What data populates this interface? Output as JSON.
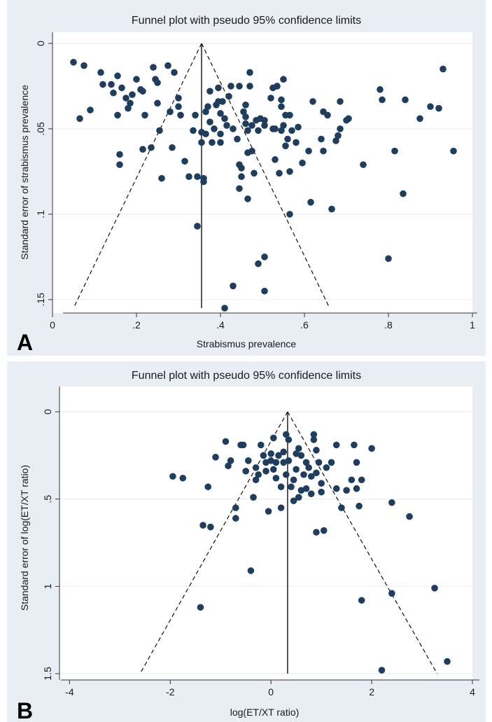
{
  "chart_data": [
    {
      "type": "scatter",
      "panel_letter": "A",
      "title": "Funnel plot with pseudo 95% confidence limits",
      "xlabel": "Strabismus prevalence",
      "ylabel": "Standard error of strabismus prevalence",
      "xlim": [
        0,
        1
      ],
      "ylim": [
        0,
        0.155
      ],
      "y_inverted": true,
      "xticks": [
        {
          "v": 0,
          "label": "0"
        },
        {
          "v": 0.2,
          "label": ".2"
        },
        {
          "v": 0.4,
          "label": ".4"
        },
        {
          "v": 0.6,
          "label": ".6"
        },
        {
          "v": 0.8,
          "label": ".8"
        },
        {
          "v": 1,
          "label": "1"
        }
      ],
      "yticks": [
        {
          "v": 0,
          "label": "0"
        },
        {
          "v": 0.05,
          "label": ".05"
        },
        {
          "v": 0.1,
          "label": ".1"
        },
        {
          "v": 0.15,
          "label": ".15"
        }
      ],
      "grid": "horizontal",
      "pooled_estimate": 0.355,
      "funnel": {
        "apex": [
          0.355,
          0
        ],
        "left_end": [
          0.05,
          0.155
        ],
        "right_end": [
          0.66,
          0.155
        ]
      },
      "marker_color": "#1f3d5c",
      "points": [
        [
          0.05,
          0.011
        ],
        [
          0.075,
          0.013
        ],
        [
          0.065,
          0.044
        ],
        [
          0.09,
          0.039
        ],
        [
          0.115,
          0.017
        ],
        [
          0.12,
          0.024
        ],
        [
          0.14,
          0.024
        ],
        [
          0.145,
          0.029
        ],
        [
          0.155,
          0.019
        ],
        [
          0.155,
          0.042
        ],
        [
          0.16,
          0.065
        ],
        [
          0.16,
          0.071
        ],
        [
          0.165,
          0.026
        ],
        [
          0.175,
          0.032
        ],
        [
          0.18,
          0.038
        ],
        [
          0.185,
          0.035
        ],
        [
          0.19,
          0.03
        ],
        [
          0.2,
          0.021
        ],
        [
          0.21,
          0.027
        ],
        [
          0.215,
          0.028
        ],
        [
          0.215,
          0.062
        ],
        [
          0.22,
          0.042
        ],
        [
          0.235,
          0.061
        ],
        [
          0.24,
          0.014
        ],
        [
          0.245,
          0.021
        ],
        [
          0.25,
          0.023
        ],
        [
          0.25,
          0.035
        ],
        [
          0.255,
          0.051
        ],
        [
          0.26,
          0.079
        ],
        [
          0.275,
          0.013
        ],
        [
          0.28,
          0.04
        ],
        [
          0.285,
          0.061
        ],
        [
          0.29,
          0.017
        ],
        [
          0.3,
          0.032
        ],
        [
          0.3,
          0.037
        ],
        [
          0.305,
          0.042
        ],
        [
          0.315,
          0.069
        ],
        [
          0.325,
          0.078
        ],
        [
          0.335,
          0.051
        ],
        [
          0.34,
          0.042
        ],
        [
          0.345,
          0.107
        ],
        [
          0.345,
          0.078
        ],
        [
          0.355,
          0.052
        ],
        [
          0.355,
          0.058
        ],
        [
          0.36,
          0.079
        ],
        [
          0.36,
          0.081
        ],
        [
          0.365,
          0.04
        ],
        [
          0.365,
          0.053
        ],
        [
          0.37,
          0.037
        ],
        [
          0.375,
          0.028
        ],
        [
          0.375,
          0.046
        ],
        [
          0.38,
          0.058
        ],
        [
          0.385,
          0.05
        ],
        [
          0.39,
          0.036
        ],
        [
          0.395,
          0.026
        ],
        [
          0.395,
          0.034
        ],
        [
          0.4,
          0.041
        ],
        [
          0.4,
          0.053
        ],
        [
          0.4,
          0.058
        ],
        [
          0.405,
          0.034
        ],
        [
          0.41,
          0.044
        ],
        [
          0.41,
          0.155
        ],
        [
          0.415,
          0.048
        ],
        [
          0.42,
          0.031
        ],
        [
          0.425,
          0.025
        ],
        [
          0.43,
          0.05
        ],
        [
          0.43,
          0.142
        ],
        [
          0.44,
          0.056
        ],
        [
          0.445,
          0.025
        ],
        [
          0.445,
          0.085
        ],
        [
          0.445,
          0.071
        ],
        [
          0.45,
          0.073
        ],
        [
          0.45,
          0.078
        ],
        [
          0.455,
          0.04
        ],
        [
          0.46,
          0.036
        ],
        [
          0.46,
          0.043
        ],
        [
          0.46,
          0.047
        ],
        [
          0.465,
          0.051
        ],
        [
          0.465,
          0.064
        ],
        [
          0.465,
          0.091
        ],
        [
          0.47,
          0.017
        ],
        [
          0.47,
          0.025
        ],
        [
          0.475,
          0.063
        ],
        [
          0.475,
          0.048
        ],
        [
          0.48,
          0.076
        ],
        [
          0.485,
          0.045
        ],
        [
          0.49,
          0.129
        ],
        [
          0.49,
          0.051
        ],
        [
          0.495,
          0.044
        ],
        [
          0.505,
          0.125
        ],
        [
          0.505,
          0.045
        ],
        [
          0.505,
          0.048
        ],
        [
          0.505,
          0.145
        ],
        [
          0.52,
          0.032
        ],
        [
          0.525,
          0.026
        ],
        [
          0.525,
          0.05
        ],
        [
          0.53,
          0.05
        ],
        [
          0.53,
          0.068
        ],
        [
          0.535,
          0.025
        ],
        [
          0.54,
          0.076
        ],
        [
          0.545,
          0.033
        ],
        [
          0.545,
          0.037
        ],
        [
          0.545,
          0.051
        ],
        [
          0.55,
          0.021
        ],
        [
          0.55,
          0.048
        ],
        [
          0.555,
          0.042
        ],
        [
          0.555,
          0.06
        ],
        [
          0.56,
          0.056
        ],
        [
          0.565,
          0.042
        ],
        [
          0.565,
          0.075
        ],
        [
          0.565,
          0.1
        ],
        [
          0.57,
          0.051
        ],
        [
          0.58,
          0.058
        ],
        [
          0.585,
          0.049
        ],
        [
          0.595,
          0.07
        ],
        [
          0.61,
          0.063
        ],
        [
          0.615,
          0.093
        ],
        [
          0.62,
          0.034
        ],
        [
          0.64,
          0.056
        ],
        [
          0.645,
          0.063
        ],
        [
          0.645,
          0.04
        ],
        [
          0.655,
          0.042
        ],
        [
          0.665,
          0.097
        ],
        [
          0.675,
          0.057
        ],
        [
          0.68,
          0.054
        ],
        [
          0.685,
          0.05
        ],
        [
          0.685,
          0.034
        ],
        [
          0.7,
          0.045
        ],
        [
          0.705,
          0.044
        ],
        [
          0.74,
          0.071
        ],
        [
          0.78,
          0.027
        ],
        [
          0.785,
          0.033
        ],
        [
          0.8,
          0.126
        ],
        [
          0.815,
          0.063
        ],
        [
          0.835,
          0.088
        ],
        [
          0.84,
          0.033
        ],
        [
          0.875,
          0.044
        ],
        [
          0.9,
          0.037
        ],
        [
          0.92,
          0.038
        ],
        [
          0.93,
          0.015
        ],
        [
          0.955,
          0.063
        ]
      ]
    },
    {
      "type": "scatter",
      "panel_letter": "B",
      "title": "Funnel plot with pseudo 95% confidence limits",
      "xlabel": "log(ET/XT ratio)",
      "ylabel": "Standard error of log(ET/XT ratio)",
      "xlim": [
        -4.2,
        4
      ],
      "ylim": [
        0,
        1.5
      ],
      "y_inverted": true,
      "xticks": [
        {
          "v": -4,
          "label": "-4"
        },
        {
          "v": -2,
          "label": "-2"
        },
        {
          "v": 0,
          "label": "0"
        },
        {
          "v": 2,
          "label": "2"
        },
        {
          "v": 4,
          "label": "4"
        }
      ],
      "yticks": [
        {
          "v": 0,
          "label": "0"
        },
        {
          "v": 0.5,
          "label": ".5"
        },
        {
          "v": 1,
          "label": "1"
        },
        {
          "v": 1.5,
          "label": "1.5"
        }
      ],
      "grid": "horizontal",
      "pooled_estimate": 0.33,
      "funnel": {
        "apex": [
          0.33,
          0
        ],
        "left_end": [
          -2.6,
          1.5
        ],
        "right_end": [
          3.3,
          1.5
        ]
      },
      "marker_color": "#1f3d5c",
      "points": [
        [
          -1.95,
          0.37
        ],
        [
          -1.75,
          0.38
        ],
        [
          -1.25,
          0.43
        ],
        [
          -1.2,
          0.66
        ],
        [
          -1.35,
          0.65
        ],
        [
          -1.4,
          1.12
        ],
        [
          -1.1,
          0.26
        ],
        [
          -0.9,
          0.17
        ],
        [
          -0.85,
          0.31
        ],
        [
          -0.8,
          0.28
        ],
        [
          -0.7,
          0.55
        ],
        [
          -0.7,
          0.61
        ],
        [
          -0.6,
          0.19
        ],
        [
          -0.55,
          0.19
        ],
        [
          -0.5,
          0.34
        ],
        [
          -0.45,
          0.28
        ],
        [
          -0.4,
          0.91
        ],
        [
          -0.35,
          0.49
        ],
        [
          -0.3,
          0.32
        ],
        [
          -0.3,
          0.39
        ],
        [
          -0.25,
          0.36
        ],
        [
          -0.2,
          0.19
        ],
        [
          -0.15,
          0.25
        ],
        [
          -0.1,
          0.29
        ],
        [
          -0.1,
          0.34
        ],
        [
          -0.05,
          0.57
        ],
        [
          0.0,
          0.24
        ],
        [
          0.0,
          0.28
        ],
        [
          0.05,
          0.15
        ],
        [
          0.05,
          0.33
        ],
        [
          0.1,
          0.29
        ],
        [
          0.1,
          0.38
        ],
        [
          0.15,
          0.25
        ],
        [
          0.2,
          0.43
        ],
        [
          0.2,
          0.55
        ],
        [
          0.25,
          0.23
        ],
        [
          0.25,
          0.29
        ],
        [
          0.3,
          0.13
        ],
        [
          0.3,
          0.36
        ],
        [
          0.35,
          0.16
        ],
        [
          0.35,
          0.28
        ],
        [
          0.4,
          0.43
        ],
        [
          0.45,
          0.39
        ],
        [
          0.45,
          0.51
        ],
        [
          0.5,
          0.24
        ],
        [
          0.5,
          0.33
        ],
        [
          0.55,
          0.49
        ],
        [
          0.55,
          0.21
        ],
        [
          0.6,
          0.45
        ],
        [
          0.6,
          0.25
        ],
        [
          0.65,
          0.36
        ],
        [
          0.7,
          0.29
        ],
        [
          0.7,
          0.44
        ],
        [
          0.75,
          0.32
        ],
        [
          0.8,
          0.47
        ],
        [
          0.8,
          0.37
        ],
        [
          0.85,
          0.13
        ],
        [
          0.85,
          0.16
        ],
        [
          0.9,
          0.22
        ],
        [
          0.9,
          0.35
        ],
        [
          0.9,
          0.69
        ],
        [
          0.95,
          0.29
        ],
        [
          1.0,
          0.41
        ],
        [
          1.0,
          0.46
        ],
        [
          1.05,
          0.68
        ],
        [
          1.1,
          0.32
        ],
        [
          1.2,
          0.29
        ],
        [
          1.3,
          0.19
        ],
        [
          1.3,
          0.44
        ],
        [
          1.4,
          0.55
        ],
        [
          1.5,
          0.45
        ],
        [
          1.6,
          0.39
        ],
        [
          1.65,
          0.19
        ],
        [
          1.7,
          0.29
        ],
        [
          1.7,
          0.44
        ],
        [
          1.75,
          0.54
        ],
        [
          1.8,
          0.39
        ],
        [
          1.8,
          1.08
        ],
        [
          2.0,
          0.21
        ],
        [
          2.2,
          1.48
        ],
        [
          2.4,
          0.52
        ],
        [
          2.4,
          1.04
        ],
        [
          2.75,
          0.6
        ],
        [
          3.25,
          1.01
        ],
        [
          3.5,
          1.43
        ]
      ]
    }
  ]
}
